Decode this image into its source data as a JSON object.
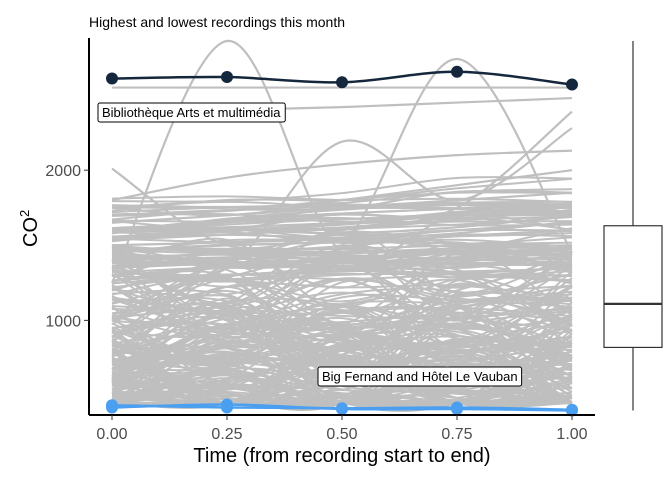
{
  "chart_data": {
    "type": "line",
    "title": "Highest and lowest recordings this month",
    "xlabel": "Time (from recording start to end)",
    "ylabel_base": "CO",
    "ylabel_superscript": "2",
    "x_ticks": [
      "0.00",
      "0.25",
      "0.50",
      "0.75",
      "1.00"
    ],
    "y_ticks": [
      "1000",
      "2000"
    ],
    "xlim": [
      -0.05,
      1.05
    ],
    "ylim": [
      370,
      2880
    ],
    "x": [
      0,
      0.25,
      0.5,
      0.75,
      1.0
    ],
    "highlight_series": [
      {
        "name": "Bibliothèque Arts et multimédia",
        "role": "highest",
        "values": [
          2610,
          2620,
          2585,
          2655,
          2570
        ],
        "color": "#14273d"
      },
      {
        "name": "Big Fernand and Hôtel Le Vauban",
        "role": "lowest",
        "values": [
          420,
          440,
          410,
          410,
          400
        ],
        "color": "#4a9ff0"
      },
      {
        "name": "Big Fernand and Hôtel Le Vauban",
        "role": "lowest",
        "values": [
          435,
          420,
          415,
          420,
          405
        ],
        "color": "#4a9ff0"
      }
    ],
    "background_series_color": "#bfbfbf",
    "background_series_sample": [
      [
        2010,
        1500,
        1600,
        1750,
        2390
      ],
      [
        1250,
        2860,
        1450,
        1700,
        1600
      ],
      [
        1300,
        1350,
        2190,
        1800,
        2280
      ],
      [
        1200,
        1400,
        1500,
        2740,
        1450
      ],
      [
        1800,
        1950,
        2040,
        2100,
        2130
      ],
      [
        1750,
        1700,
        1800,
        1900,
        2000
      ],
      [
        1650,
        1700,
        1750,
        1800,
        1850
      ],
      [
        1600,
        1620,
        1650,
        1700,
        1720
      ],
      [
        1550,
        1600,
        1580,
        1620,
        1700
      ],
      [
        1500,
        1520,
        1550,
        1600,
        1650
      ],
      [
        1450,
        1500,
        1520,
        1560,
        1600
      ],
      [
        1400,
        1420,
        1450,
        1480,
        1500
      ],
      [
        1350,
        1380,
        1400,
        1450,
        1480
      ],
      [
        1300,
        1350,
        1380,
        1400,
        1420
      ],
      [
        2550,
        2550,
        2550,
        2550,
        2550
      ],
      [
        2380,
        2400,
        2420,
        2450,
        2480
      ]
    ],
    "boxplot": {
      "min": 400,
      "q1": 820,
      "median": 1110,
      "q3": 1630,
      "max": 2860
    },
    "grid": false
  }
}
